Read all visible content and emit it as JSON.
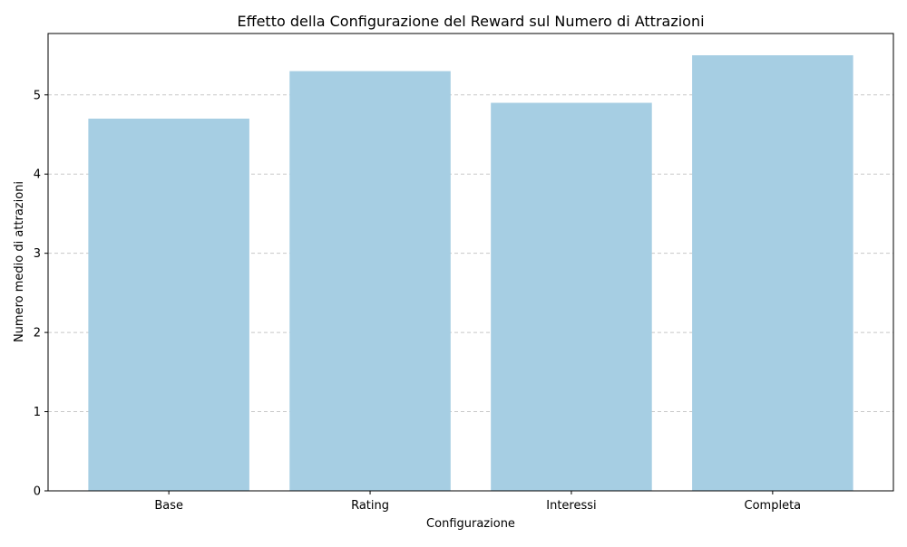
{
  "chart_data": {
    "type": "bar",
    "title": "Effetto della Configurazione del Reward sul Numero di Attrazioni",
    "xlabel": "Configurazione",
    "ylabel": "Numero medio di attrazioni",
    "categories": [
      "Base",
      "Rating",
      "Interessi",
      "Completa"
    ],
    "values": [
      4.7,
      5.3,
      4.9,
      5.5
    ],
    "ylim": [
      0,
      5.775
    ],
    "yticks": [
      0,
      1,
      2,
      3,
      4,
      5
    ],
    "ytick_labels": [
      "0",
      "1",
      "2",
      "3",
      "4",
      "5"
    ],
    "grid": "y-dashed",
    "legend": "none",
    "bar_color": "#a6cee3"
  }
}
